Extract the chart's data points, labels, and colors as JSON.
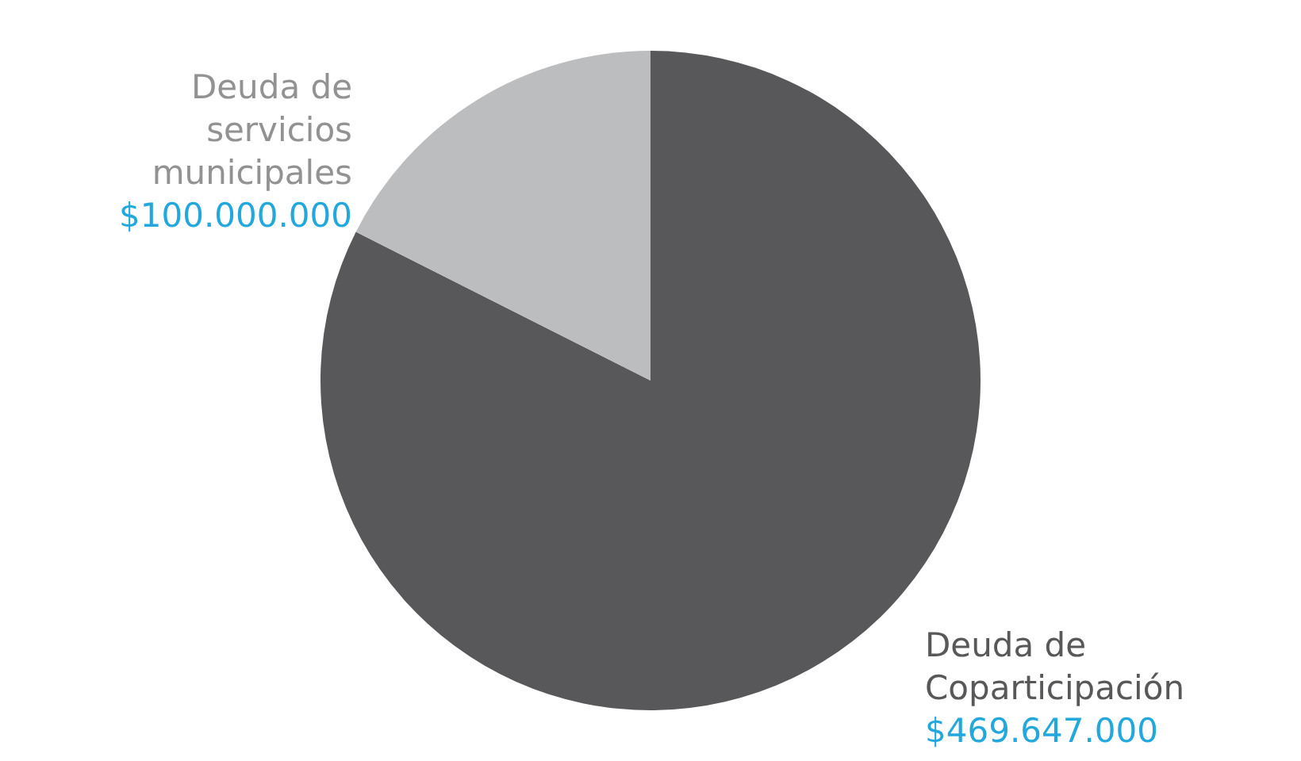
{
  "chart_data": {
    "type": "pie",
    "categories": [
      "Deuda de Coparticipación",
      "Deuda de servicios municipales"
    ],
    "values": [
      469647000,
      100000000
    ],
    "colors": [
      "#58585a",
      "#bcbdbf"
    ],
    "value_labels": [
      "$469.647.000",
      "$100.000.000"
    ]
  }
}
